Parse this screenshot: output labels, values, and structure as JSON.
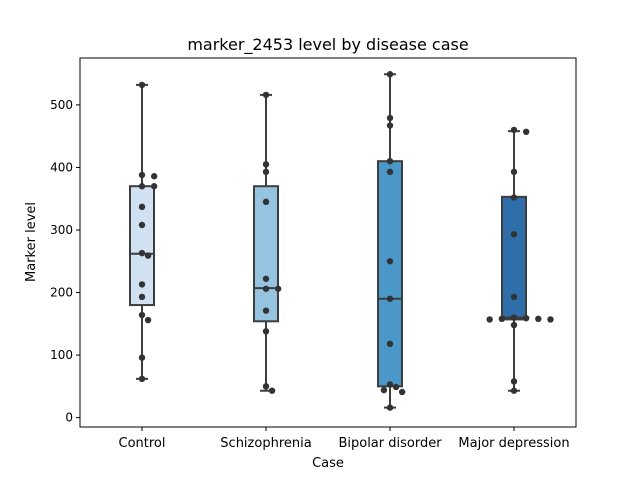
{
  "chart_data": {
    "type": "box",
    "title": "marker_2453 level by disease case",
    "xlabel": "Case",
    "ylabel": "Marker level",
    "ylim": [
      -15,
      575
    ],
    "yticks": [
      0,
      100,
      200,
      300,
      400,
      500
    ],
    "grid": false,
    "categories": [
      "Control",
      "Schizophrenia",
      "Bipolar disorder",
      "Major depression"
    ],
    "box_colors": [
      "#d0e1f2",
      "#94c4df",
      "#4a98c9",
      "#2e6fab"
    ],
    "point_color": "#333333",
    "boxes": [
      {
        "whisker_low": 62,
        "q1": 180,
        "median": 262,
        "q3": 370,
        "whisker_high": 532
      },
      {
        "whisker_low": 43,
        "q1": 154,
        "median": 207,
        "q3": 370,
        "whisker_high": 516
      },
      {
        "whisker_low": 16,
        "q1": 50,
        "median": 190,
        "q3": 410,
        "whisker_high": 549
      },
      {
        "whisker_low": 43,
        "q1": 157,
        "median": 160,
        "q3": 353,
        "whisker_high": 458
      }
    ],
    "points": [
      [
        532,
        388,
        386,
        370,
        370,
        337,
        308,
        263,
        259,
        213,
        193,
        164,
        156,
        96,
        62
      ],
      [
        516,
        405,
        393,
        345,
        222,
        206,
        206,
        171,
        138,
        50,
        43
      ],
      [
        549,
        479,
        467,
        410,
        393,
        250,
        190,
        118,
        53,
        49,
        44,
        41,
        16
      ],
      [
        460,
        457,
        393,
        352,
        293,
        193,
        160,
        159,
        158,
        158,
        157,
        157,
        148,
        58,
        43
      ]
    ]
  }
}
